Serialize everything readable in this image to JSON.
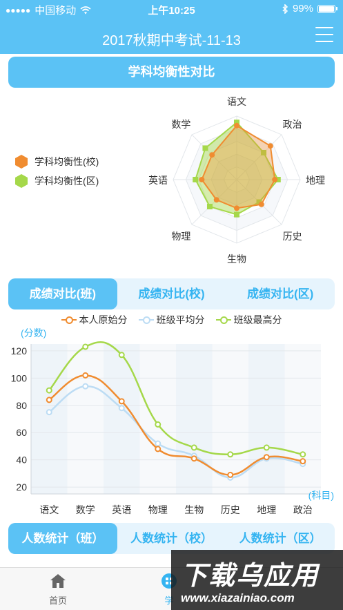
{
  "status_bar": {
    "carrier": "中国移动",
    "signal_dots": "●●●●●",
    "time": "上午10:25",
    "battery": "99%"
  },
  "nav": {
    "title": "2017秋期中考试-11-13"
  },
  "balance_section": {
    "title": "学科均衡性对比",
    "legend": [
      {
        "label": "学科均衡性(校)",
        "color": "#f08c30"
      },
      {
        "label": "学科均衡性(区)",
        "color": "#a5d84a"
      }
    ],
    "axes": [
      "语文",
      "政治",
      "地理",
      "历史",
      "生物",
      "物理",
      "英语",
      "数学"
    ],
    "series": [
      {
        "name": "学科均衡性(校)",
        "color": "#f08c30",
        "values": [
          0.85,
          0.75,
          0.6,
          0.55,
          0.45,
          0.45,
          0.55,
          0.55
        ]
      },
      {
        "name": "学科均衡性(区)",
        "color": "#a5d84a",
        "values": [
          0.9,
          0.6,
          0.65,
          0.5,
          0.55,
          0.6,
          0.65,
          0.7
        ]
      }
    ]
  },
  "score_tabs": [
    {
      "label": "成绩对比(班)",
      "active": true
    },
    {
      "label": "成绩对比(校)",
      "active": false
    },
    {
      "label": "成绩对比(区)",
      "active": false
    }
  ],
  "chart_data": {
    "type": "line",
    "ylabel": "(分数)",
    "xlabel": "(科目)",
    "categories": [
      "语文",
      "数学",
      "英语",
      "物理",
      "生物",
      "历史",
      "地理",
      "政治"
    ],
    "y_ticks": [
      20,
      40,
      60,
      80,
      100,
      120
    ],
    "ylim": [
      15,
      125
    ],
    "series": [
      {
        "name": "本人原始分",
        "color": "#f08c30",
        "values": [
          84,
          102,
          83,
          48,
          41,
          29,
          42,
          39
        ]
      },
      {
        "name": "班级平均分",
        "color": "#bcdcf4",
        "values": [
          75,
          94,
          78,
          52,
          43,
          27,
          41,
          37
        ]
      },
      {
        "name": "班级最高分",
        "color": "#a5d84a",
        "values": [
          91,
          123,
          117,
          66,
          49,
          44,
          49,
          44
        ]
      }
    ],
    "grid": true,
    "legend_position": "top"
  },
  "count_tabs": [
    {
      "label": "人数统计（班）",
      "active": true
    },
    {
      "label": "人数统计（校）",
      "active": false
    },
    {
      "label": "人数统计（区）",
      "active": false
    }
  ],
  "bottom_nav": {
    "home": "首页",
    "study": "学"
  },
  "watermark": {
    "big": "下载乌应用",
    "url": "www.xiazainiao.com"
  }
}
